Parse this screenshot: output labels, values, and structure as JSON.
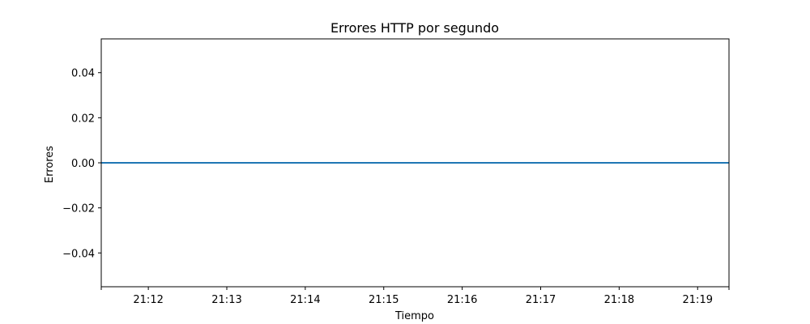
{
  "chart_data": {
    "type": "line",
    "title": "Errores HTTP por segundo",
    "xlabel": "Tiempo",
    "ylabel": "Errores",
    "x_ticks": [
      "21:12",
      "21:13",
      "21:14",
      "21:15",
      "21:16",
      "21:17",
      "21:18",
      "21:19"
    ],
    "y_ticks": [
      "0.04",
      "0.02",
      "0.00",
      "−0.02",
      "−0.04"
    ],
    "y_tick_values": [
      0.04,
      0.02,
      0.0,
      -0.02,
      -0.04
    ],
    "ylim": [
      -0.055,
      0.055
    ],
    "grid": false,
    "series": [
      {
        "color": "#1f77b4",
        "x": [
          "21:11:24",
          "21:19:24"
        ],
        "y": [
          0,
          0
        ]
      }
    ]
  }
}
